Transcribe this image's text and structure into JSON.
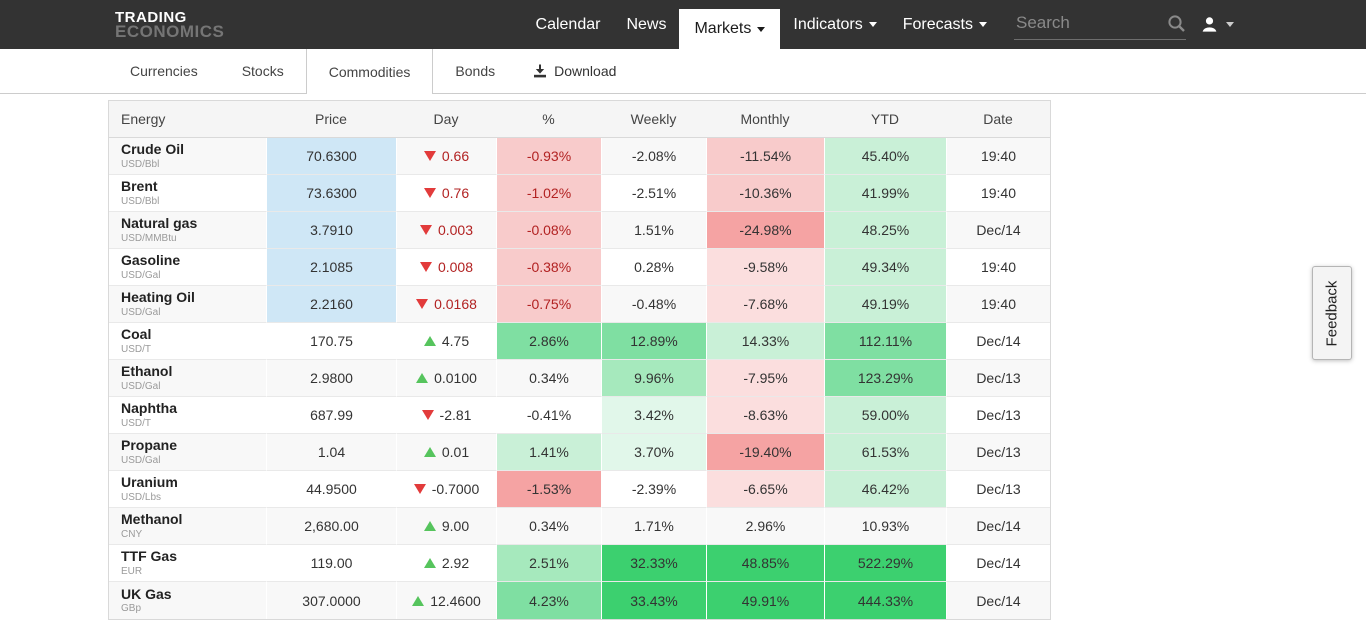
{
  "topbar": {
    "logo_line1": "TRADING",
    "logo_line2": "ECONOMICS",
    "nav": [
      {
        "label": "Calendar",
        "caret": false,
        "active": false
      },
      {
        "label": "News",
        "caret": false,
        "active": false
      },
      {
        "label": "Markets",
        "caret": true,
        "active": true
      },
      {
        "label": "Indicators",
        "caret": true,
        "active": false
      },
      {
        "label": "Forecasts",
        "caret": true,
        "active": false
      }
    ],
    "search_placeholder": "Search"
  },
  "tabbar": {
    "tabs": [
      {
        "label": "Currencies",
        "active": false
      },
      {
        "label": "Stocks",
        "active": false
      },
      {
        "label": "Commodities",
        "active": true
      },
      {
        "label": "Bonds",
        "active": false
      }
    ],
    "download_label": "Download"
  },
  "feedback_label": "Feedback",
  "palette": {
    "blue": "#cfe7f6",
    "g1": "#e1f7ea",
    "g2": "#c9f0d7",
    "g3": "#a6e9bd",
    "g4": "#7fdfa2",
    "g5": "#3cd06f",
    "r1": "#fbdede",
    "r2": "#f8cbcb",
    "r3": "#f5a3a3",
    "red_text": "#b22222",
    "green_tri": "#56c45d",
    "red_tri": "#e23b3b"
  },
  "table": {
    "columns": [
      "Energy",
      "Price",
      "Day",
      "%",
      "Weekly",
      "Monthly",
      "YTD",
      "Date"
    ],
    "rows": [
      {
        "name": "Crude Oil",
        "unit": "USD/Bbl",
        "price": "70.6300",
        "price_highlight": true,
        "day": {
          "dir": "down",
          "value": "0.66",
          "red": true
        },
        "pct": {
          "text": "-0.93%",
          "bg": "r2",
          "red": true
        },
        "weekly": {
          "text": "-2.08%",
          "bg": ""
        },
        "monthly": {
          "text": "-11.54%",
          "bg": "r2"
        },
        "ytd": {
          "text": "45.40%",
          "bg": "g2"
        },
        "date": "19:40"
      },
      {
        "name": "Brent",
        "unit": "USD/Bbl",
        "price": "73.6300",
        "price_highlight": true,
        "day": {
          "dir": "down",
          "value": "0.76",
          "red": true
        },
        "pct": {
          "text": "-1.02%",
          "bg": "r2",
          "red": true
        },
        "weekly": {
          "text": "-2.51%",
          "bg": ""
        },
        "monthly": {
          "text": "-10.36%",
          "bg": "r2"
        },
        "ytd": {
          "text": "41.99%",
          "bg": "g2"
        },
        "date": "19:40"
      },
      {
        "name": "Natural gas",
        "unit": "USD/MMBtu",
        "price": "3.7910",
        "price_highlight": true,
        "day": {
          "dir": "down",
          "value": "0.003",
          "red": true
        },
        "pct": {
          "text": "-0.08%",
          "bg": "r2",
          "red": true
        },
        "weekly": {
          "text": "1.51%",
          "bg": ""
        },
        "monthly": {
          "text": "-24.98%",
          "bg": "r3"
        },
        "ytd": {
          "text": "48.25%",
          "bg": "g2"
        },
        "date": "Dec/14"
      },
      {
        "name": "Gasoline",
        "unit": "USD/Gal",
        "price": "2.1085",
        "price_highlight": true,
        "day": {
          "dir": "down",
          "value": "0.008",
          "red": true
        },
        "pct": {
          "text": "-0.38%",
          "bg": "r2",
          "red": true
        },
        "weekly": {
          "text": "0.28%",
          "bg": ""
        },
        "monthly": {
          "text": "-9.58%",
          "bg": "r1"
        },
        "ytd": {
          "text": "49.34%",
          "bg": "g2"
        },
        "date": "19:40"
      },
      {
        "name": "Heating Oil",
        "unit": "USD/Gal",
        "price": "2.2160",
        "price_highlight": true,
        "day": {
          "dir": "down",
          "value": "0.0168",
          "red": true
        },
        "pct": {
          "text": "-0.75%",
          "bg": "r2",
          "red": true
        },
        "weekly": {
          "text": "-0.48%",
          "bg": ""
        },
        "monthly": {
          "text": "-7.68%",
          "bg": "r1"
        },
        "ytd": {
          "text": "49.19%",
          "bg": "g2"
        },
        "date": "19:40"
      },
      {
        "name": "Coal",
        "unit": "USD/T",
        "price": "170.75",
        "price_highlight": false,
        "day": {
          "dir": "up",
          "value": "4.75",
          "red": false
        },
        "pct": {
          "text": "2.86%",
          "bg": "g4"
        },
        "weekly": {
          "text": "12.89%",
          "bg": "g4"
        },
        "monthly": {
          "text": "14.33%",
          "bg": "g2"
        },
        "ytd": {
          "text": "112.11%",
          "bg": "g4"
        },
        "date": "Dec/14"
      },
      {
        "name": "Ethanol",
        "unit": "USD/Gal",
        "price": "2.9800",
        "price_highlight": false,
        "day": {
          "dir": "up",
          "value": "0.0100",
          "red": false
        },
        "pct": {
          "text": "0.34%",
          "bg": ""
        },
        "weekly": {
          "text": "9.96%",
          "bg": "g3"
        },
        "monthly": {
          "text": "-7.95%",
          "bg": "r1"
        },
        "ytd": {
          "text": "123.29%",
          "bg": "g4"
        },
        "date": "Dec/13"
      },
      {
        "name": "Naphtha",
        "unit": "USD/T",
        "price": "687.99",
        "price_highlight": false,
        "day": {
          "dir": "down",
          "value": "-2.81",
          "red": false
        },
        "pct": {
          "text": "-0.41%",
          "bg": ""
        },
        "weekly": {
          "text": "3.42%",
          "bg": "g1"
        },
        "monthly": {
          "text": "-8.63%",
          "bg": "r1"
        },
        "ytd": {
          "text": "59.00%",
          "bg": "g2"
        },
        "date": "Dec/13"
      },
      {
        "name": "Propane",
        "unit": "USD/Gal",
        "price": "1.04",
        "price_highlight": false,
        "day": {
          "dir": "up",
          "value": "0.01",
          "red": false
        },
        "pct": {
          "text": "1.41%",
          "bg": "g2"
        },
        "weekly": {
          "text": "3.70%",
          "bg": "g1"
        },
        "monthly": {
          "text": "-19.40%",
          "bg": "r3"
        },
        "ytd": {
          "text": "61.53%",
          "bg": "g2"
        },
        "date": "Dec/13"
      },
      {
        "name": "Uranium",
        "unit": "USD/Lbs",
        "price": "44.9500",
        "price_highlight": false,
        "day": {
          "dir": "down",
          "value": "-0.7000",
          "red": false
        },
        "pct": {
          "text": "-1.53%",
          "bg": "r3"
        },
        "weekly": {
          "text": "-2.39%",
          "bg": ""
        },
        "monthly": {
          "text": "-6.65%",
          "bg": "r1"
        },
        "ytd": {
          "text": "46.42%",
          "bg": "g2"
        },
        "date": "Dec/13"
      },
      {
        "name": "Methanol",
        "unit": "CNY",
        "price": "2,680.00",
        "price_highlight": false,
        "day": {
          "dir": "up",
          "value": "9.00",
          "red": false
        },
        "pct": {
          "text": "0.34%",
          "bg": ""
        },
        "weekly": {
          "text": "1.71%",
          "bg": ""
        },
        "monthly": {
          "text": "2.96%",
          "bg": ""
        },
        "ytd": {
          "text": "10.93%",
          "bg": ""
        },
        "date": "Dec/14"
      },
      {
        "name": "TTF Gas",
        "unit": "EUR",
        "price": "119.00",
        "price_highlight": false,
        "day": {
          "dir": "up",
          "value": "2.92",
          "red": false
        },
        "pct": {
          "text": "2.51%",
          "bg": "g3"
        },
        "weekly": {
          "text": "32.33%",
          "bg": "g5"
        },
        "monthly": {
          "text": "48.85%",
          "bg": "g5"
        },
        "ytd": {
          "text": "522.29%",
          "bg": "g5"
        },
        "date": "Dec/14"
      },
      {
        "name": "UK Gas",
        "unit": "GBp",
        "price": "307.0000",
        "price_highlight": false,
        "day": {
          "dir": "up",
          "value": "12.4600",
          "red": false
        },
        "pct": {
          "text": "4.23%",
          "bg": "g4"
        },
        "weekly": {
          "text": "33.43%",
          "bg": "g5"
        },
        "monthly": {
          "text": "49.91%",
          "bg": "g5"
        },
        "ytd": {
          "text": "444.33%",
          "bg": "g5"
        },
        "date": "Dec/14"
      }
    ]
  }
}
